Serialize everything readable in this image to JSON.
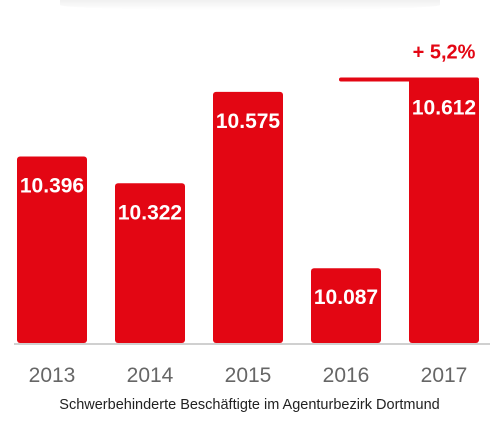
{
  "chart_data": {
    "type": "bar",
    "categories": [
      "2013",
      "2014",
      "2015",
      "2016",
      "2017"
    ],
    "values": [
      10396,
      10322,
      10575,
      10087,
      10612
    ],
    "value_labels": [
      "10.396",
      "10.322",
      "10.575",
      "10.087",
      "10.612"
    ],
    "ylim": [
      9880,
      10630
    ],
    "annotation": {
      "text": "+ 5,2%",
      "from": "2016",
      "to": "2017"
    },
    "xlabel": "",
    "ylabel": "",
    "grid": false,
    "colors": {
      "bar": "#e30613",
      "axis": "#d0d0d0",
      "tick": "#666666"
    }
  },
  "caption": "Schwerbehinderte Beschäftigte im Agenturbezirk Dortmund"
}
